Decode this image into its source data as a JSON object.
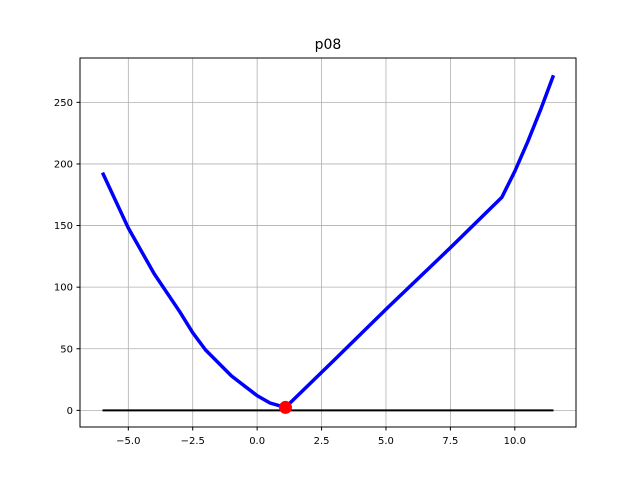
{
  "chart_data": {
    "type": "line",
    "title": "p08",
    "xlabel": "",
    "ylabel": "",
    "xlim": [
      -6.875,
      12.375
    ],
    "ylim": [
      -13.5,
      286
    ],
    "grid": true,
    "xticks": [
      -5.0,
      -2.5,
      0.0,
      2.5,
      5.0,
      7.5,
      10.0
    ],
    "xtick_labels": [
      "−5.0",
      "−2.5",
      "0.0",
      "2.5",
      "5.0",
      "7.5",
      "10.0"
    ],
    "yticks": [
      0,
      50,
      100,
      150,
      200,
      250
    ],
    "ytick_labels": [
      "0",
      "50",
      "100",
      "150",
      "200",
      "250"
    ],
    "series": [
      {
        "color": "#0000ff",
        "x": [
          -6,
          -5,
          -4,
          -3,
          -2.5,
          -2,
          -1,
          0,
          0.5,
          1.1,
          3,
          5,
          7.5,
          9.5,
          10,
          10.5,
          11,
          11.5
        ],
        "y": [
          193,
          148,
          111,
          80,
          63,
          49,
          28,
          12,
          6,
          2.4,
          41,
          82,
          132,
          173,
          194,
          218,
          244,
          272
        ]
      },
      {
        "color": "#000000",
        "x": [
          -6,
          11.5
        ],
        "y": [
          0,
          0
        ]
      }
    ],
    "markers": [
      {
        "x": 1.1,
        "y": 2.4,
        "color": "#ff0000"
      }
    ]
  }
}
